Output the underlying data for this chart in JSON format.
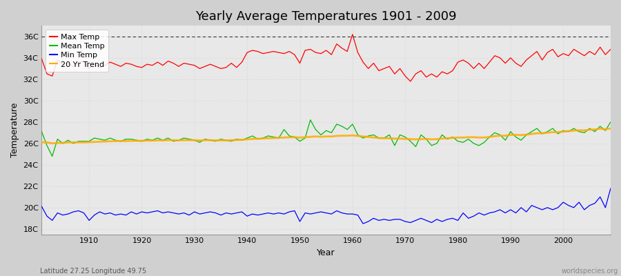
{
  "title": "Yearly Average Temperatures 1901 - 2009",
  "xlabel": "Year",
  "ylabel": "Temperature",
  "xlim": [
    1901,
    2009
  ],
  "ylim": [
    17.5,
    37
  ],
  "yticks": [
    18,
    20,
    22,
    24,
    26,
    28,
    30,
    32,
    34,
    36
  ],
  "ytick_labels": [
    "18C",
    "20C",
    "22C",
    "24C",
    "26C",
    "28C",
    "30C",
    "32C",
    "34C",
    "36C"
  ],
  "xticks": [
    1910,
    1920,
    1930,
    1940,
    1950,
    1960,
    1970,
    1980,
    1990,
    2000
  ],
  "hline_y": 36,
  "max_temp_color": "#ff0000",
  "mean_temp_color": "#00bb00",
  "min_temp_color": "#0000ff",
  "trend_color": "#ffaa00",
  "footer_left": "Latitude 27.25 Longitude 49.75",
  "footer_right": "worldspecies.org",
  "years": [
    1901,
    1902,
    1903,
    1904,
    1905,
    1906,
    1907,
    1908,
    1909,
    1910,
    1911,
    1912,
    1913,
    1914,
    1915,
    1916,
    1917,
    1918,
    1919,
    1920,
    1921,
    1922,
    1923,
    1924,
    1925,
    1926,
    1927,
    1928,
    1929,
    1930,
    1931,
    1932,
    1933,
    1934,
    1935,
    1936,
    1937,
    1938,
    1939,
    1940,
    1941,
    1942,
    1943,
    1944,
    1945,
    1946,
    1947,
    1948,
    1949,
    1950,
    1951,
    1952,
    1953,
    1954,
    1955,
    1956,
    1957,
    1958,
    1959,
    1960,
    1961,
    1962,
    1963,
    1964,
    1965,
    1966,
    1967,
    1968,
    1969,
    1970,
    1971,
    1972,
    1973,
    1974,
    1975,
    1976,
    1977,
    1978,
    1979,
    1980,
    1981,
    1982,
    1983,
    1984,
    1985,
    1986,
    1987,
    1988,
    1989,
    1990,
    1991,
    1992,
    1993,
    1994,
    1995,
    1996,
    1997,
    1998,
    1999,
    2000,
    2001,
    2002,
    2003,
    2004,
    2005,
    2006,
    2007,
    2008,
    2009
  ],
  "max_temp": [
    33.9,
    32.5,
    32.3,
    33.8,
    33.4,
    33.5,
    33.2,
    33.6,
    33.7,
    33.0,
    33.4,
    33.1,
    33.3,
    33.6,
    33.4,
    33.2,
    33.5,
    33.4,
    33.2,
    33.1,
    33.4,
    33.3,
    33.6,
    33.3,
    33.7,
    33.5,
    33.2,
    33.5,
    33.4,
    33.3,
    33.0,
    33.2,
    33.4,
    33.2,
    33.0,
    33.1,
    33.5,
    33.1,
    33.6,
    34.5,
    34.7,
    34.6,
    34.4,
    34.5,
    34.6,
    34.5,
    34.4,
    34.6,
    34.3,
    33.5,
    34.7,
    34.8,
    34.5,
    34.4,
    34.7,
    34.3,
    35.3,
    34.9,
    34.6,
    36.2,
    34.5,
    33.6,
    33.0,
    33.5,
    32.8,
    33.0,
    33.2,
    32.5,
    33.0,
    32.3,
    31.8,
    32.5,
    32.8,
    32.2,
    32.5,
    32.2,
    32.7,
    32.5,
    32.8,
    33.6,
    33.8,
    33.5,
    33.0,
    33.5,
    33.0,
    33.6,
    34.2,
    34.0,
    33.5,
    34.0,
    33.5,
    33.2,
    33.8,
    34.2,
    34.6,
    33.8,
    34.5,
    34.8,
    34.1,
    34.4,
    34.2,
    34.8,
    34.5,
    34.2,
    34.6,
    34.3,
    35.0,
    34.3,
    34.8
  ],
  "mean_temp": [
    27.1,
    25.8,
    24.8,
    26.4,
    26.0,
    26.3,
    26.0,
    26.2,
    26.2,
    26.2,
    26.5,
    26.4,
    26.3,
    26.5,
    26.3,
    26.2,
    26.4,
    26.4,
    26.3,
    26.2,
    26.4,
    26.3,
    26.5,
    26.3,
    26.5,
    26.2,
    26.3,
    26.5,
    26.4,
    26.3,
    26.1,
    26.4,
    26.3,
    26.2,
    26.4,
    26.3,
    26.2,
    26.4,
    26.3,
    26.5,
    26.7,
    26.4,
    26.5,
    26.7,
    26.6,
    26.5,
    27.3,
    26.7,
    26.6,
    26.2,
    26.5,
    28.2,
    27.3,
    26.8,
    27.2,
    27.0,
    27.8,
    27.6,
    27.3,
    27.8,
    26.8,
    26.5,
    26.7,
    26.8,
    26.5,
    26.5,
    26.8,
    25.8,
    26.8,
    26.6,
    26.2,
    25.7,
    26.8,
    26.4,
    25.8,
    26.0,
    26.8,
    26.4,
    26.6,
    26.2,
    26.1,
    26.4,
    26.0,
    25.8,
    26.1,
    26.6,
    27.0,
    26.8,
    26.3,
    27.1,
    26.6,
    26.3,
    26.8,
    27.1,
    27.4,
    26.9,
    27.1,
    27.4,
    26.9,
    27.2,
    27.1,
    27.4,
    27.1,
    27.0,
    27.4,
    27.1,
    27.6,
    27.2,
    28.0
  ],
  "min_temp": [
    20.1,
    19.2,
    18.8,
    19.5,
    19.3,
    19.4,
    19.6,
    19.7,
    19.5,
    18.8,
    19.3,
    19.6,
    19.4,
    19.5,
    19.3,
    19.4,
    19.3,
    19.6,
    19.4,
    19.6,
    19.5,
    19.6,
    19.7,
    19.5,
    19.6,
    19.5,
    19.4,
    19.5,
    19.3,
    19.6,
    19.4,
    19.5,
    19.6,
    19.5,
    19.3,
    19.5,
    19.4,
    19.5,
    19.6,
    19.2,
    19.4,
    19.3,
    19.4,
    19.5,
    19.4,
    19.5,
    19.4,
    19.6,
    19.7,
    18.7,
    19.5,
    19.4,
    19.5,
    19.6,
    19.5,
    19.4,
    19.7,
    19.5,
    19.4,
    19.4,
    19.3,
    18.5,
    18.7,
    19.0,
    18.8,
    18.9,
    18.8,
    18.9,
    18.9,
    18.7,
    18.6,
    18.8,
    19.0,
    18.8,
    18.6,
    18.9,
    18.7,
    18.9,
    19.0,
    18.8,
    19.5,
    19.0,
    19.2,
    19.5,
    19.3,
    19.5,
    19.6,
    19.8,
    19.5,
    19.8,
    19.5,
    20.0,
    19.6,
    20.2,
    20.0,
    19.8,
    20.0,
    19.8,
    20.0,
    20.5,
    20.2,
    20.0,
    20.5,
    19.8,
    20.2,
    20.4,
    21.0,
    20.0,
    21.8
  ],
  "trend": [
    26.1,
    26.1,
    26.0,
    26.05,
    26.05,
    26.1,
    26.1,
    26.1,
    26.1,
    26.12,
    26.14,
    26.16,
    26.18,
    26.2,
    26.22,
    26.22,
    26.22,
    26.24,
    26.24,
    26.24,
    26.26,
    26.26,
    26.28,
    26.28,
    26.3,
    26.3,
    26.28,
    26.3,
    26.3,
    26.3,
    26.28,
    26.3,
    26.3,
    26.28,
    26.28,
    26.28,
    26.3,
    26.32,
    26.34,
    26.38,
    26.42,
    26.44,
    26.46,
    26.48,
    26.5,
    26.52,
    26.55,
    26.57,
    26.58,
    26.55,
    26.57,
    26.62,
    26.65,
    26.62,
    26.65,
    26.65,
    26.7,
    26.72,
    26.72,
    26.75,
    26.7,
    26.65,
    26.6,
    26.55,
    26.5,
    26.48,
    26.48,
    26.45,
    26.45,
    26.42,
    26.4,
    26.38,
    26.4,
    26.42,
    26.38,
    26.4,
    26.45,
    26.48,
    26.52,
    26.55,
    26.55,
    26.58,
    26.58,
    26.55,
    26.55,
    26.6,
    26.68,
    26.72,
    26.72,
    26.8,
    26.8,
    26.78,
    26.82,
    26.88,
    26.95,
    26.95,
    27.0,
    27.05,
    27.05,
    27.1,
    27.15,
    27.2,
    27.22,
    27.22,
    27.28,
    27.3,
    27.38,
    27.32,
    27.4
  ]
}
